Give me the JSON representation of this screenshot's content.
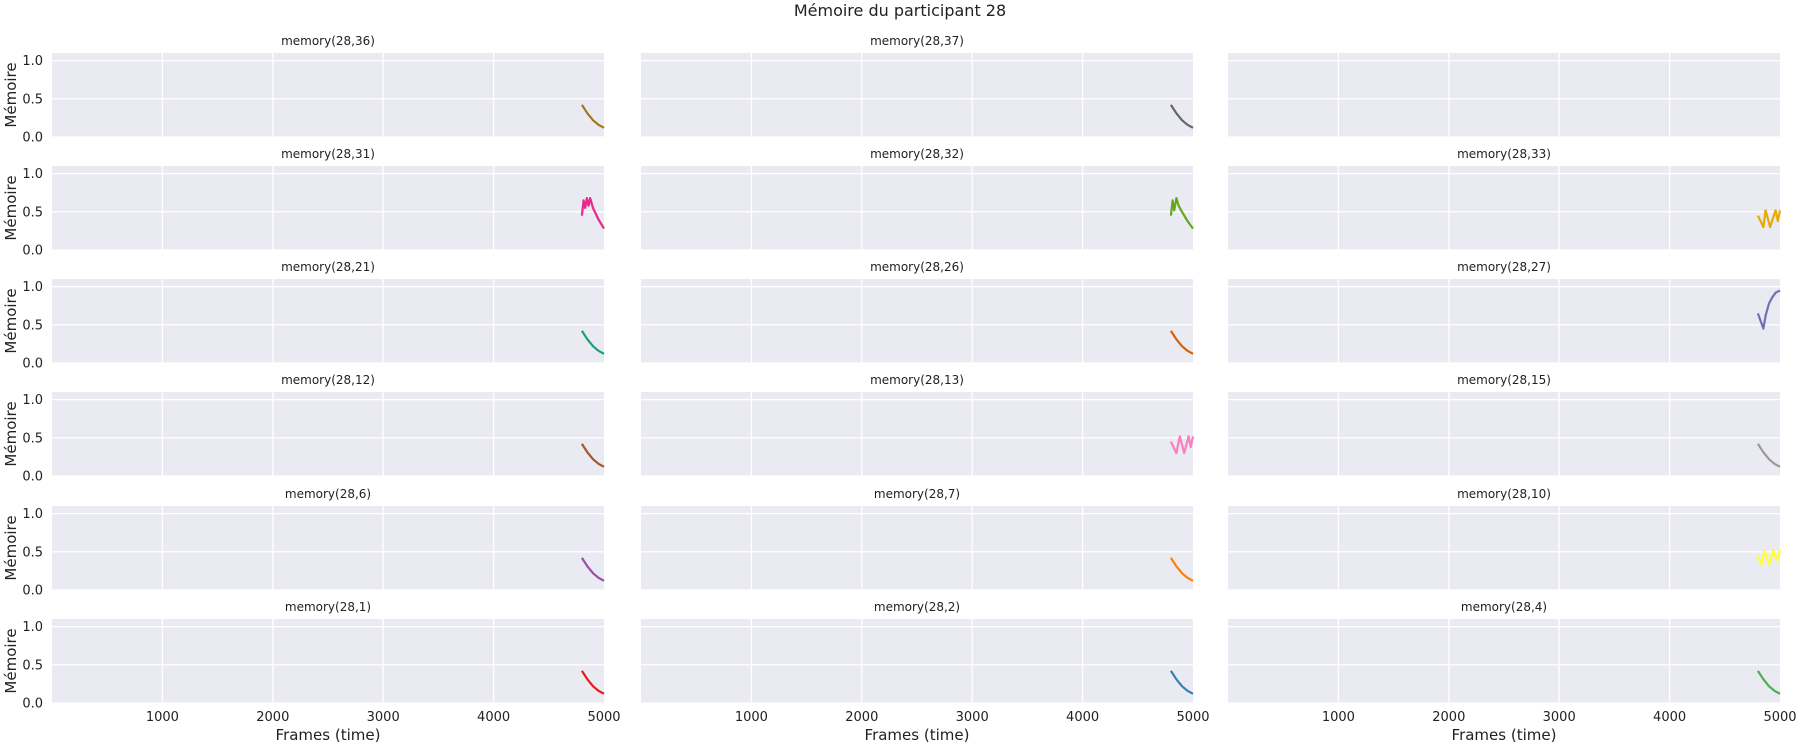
{
  "title": "Mémoire du participant 28",
  "xlabel": "Frames (time)",
  "ylabel": "Mémoire",
  "colors": {
    "panel_bg": "#eaeaf2",
    "grid": "#ffffff",
    "text": "#222222"
  },
  "chart_data": {
    "type": "line",
    "title": "Mémoire du participant 28",
    "layout": "6 rows x 3 columns of small multiples, shared axes",
    "xlabel": "Frames (time)",
    "ylabel": "Mémoire",
    "xlim": [
      0,
      5000
    ],
    "ylim": [
      0,
      1.1
    ],
    "xticks": [
      1000,
      2000,
      3000,
      4000,
      5000
    ],
    "xtick_labels": [
      "1000",
      "2000",
      "3000",
      "4000",
      "5000"
    ],
    "yticks": [
      0.0,
      0.5,
      1.0
    ],
    "ytick_labels": [
      "0.0",
      "0.5",
      "1.0"
    ],
    "grid": true,
    "panels": [
      {
        "title": "memory(28,36)",
        "color": "#a6761d",
        "x": [
          4800,
          4850,
          4900,
          4950,
          5000
        ],
        "y": [
          0.42,
          0.31,
          0.22,
          0.16,
          0.12
        ]
      },
      {
        "title": "memory(28,37)",
        "color": "#666666",
        "x": [
          4800,
          4850,
          4900,
          4950,
          5000
        ],
        "y": [
          0.42,
          0.31,
          0.22,
          0.16,
          0.12
        ]
      },
      {
        "title": "",
        "color": "#999999",
        "x": [],
        "y": []
      },
      {
        "title": "memory(28,31)",
        "color": "#e7298a",
        "x": [
          4800,
          4815,
          4830,
          4845,
          4860,
          4875,
          4900,
          4950,
          5000
        ],
        "y": [
          0.45,
          0.65,
          0.55,
          0.68,
          0.58,
          0.68,
          0.55,
          0.4,
          0.28
        ]
      },
      {
        "title": "memory(28,32)",
        "color": "#66a61e",
        "x": [
          4800,
          4815,
          4830,
          4850,
          4870,
          4900,
          4950,
          5000
        ],
        "y": [
          0.45,
          0.65,
          0.52,
          0.68,
          0.58,
          0.5,
          0.38,
          0.28
        ]
      },
      {
        "title": "memory(28,33)",
        "color": "#e6ab02",
        "x": [
          4800,
          4850,
          4870,
          4910,
          4960,
          4980,
          5000
        ],
        "y": [
          0.45,
          0.3,
          0.52,
          0.3,
          0.52,
          0.38,
          0.52
        ]
      },
      {
        "title": "memory(28,21)",
        "color": "#1b9e77",
        "x": [
          4800,
          4850,
          4900,
          4950,
          5000
        ],
        "y": [
          0.42,
          0.31,
          0.22,
          0.16,
          0.12
        ]
      },
      {
        "title": "memory(28,26)",
        "color": "#d95f02",
        "x": [
          4800,
          4850,
          4900,
          4950,
          5000
        ],
        "y": [
          0.42,
          0.31,
          0.22,
          0.16,
          0.12
        ]
      },
      {
        "title": "memory(28,27)",
        "color": "#7570b3",
        "x": [
          4800,
          4850,
          4870,
          4900,
          4930,
          4960,
          5000
        ],
        "y": [
          0.65,
          0.45,
          0.62,
          0.78,
          0.86,
          0.92,
          0.95
        ]
      },
      {
        "title": "memory(28,12)",
        "color": "#a65628",
        "x": [
          4800,
          4850,
          4900,
          4950,
          5000
        ],
        "y": [
          0.42,
          0.31,
          0.22,
          0.16,
          0.12
        ]
      },
      {
        "title": "memory(28,13)",
        "color": "#f781bf",
        "x": [
          4800,
          4850,
          4880,
          4920,
          4960,
          4980,
          5000
        ],
        "y": [
          0.45,
          0.3,
          0.52,
          0.3,
          0.52,
          0.38,
          0.52
        ]
      },
      {
        "title": "memory(28,15)",
        "color": "#999999",
        "x": [
          4800,
          4850,
          4900,
          4950,
          5000
        ],
        "y": [
          0.42,
          0.31,
          0.22,
          0.16,
          0.12
        ]
      },
      {
        "title": "memory(28,6)",
        "color": "#984ea3",
        "x": [
          4800,
          4850,
          4900,
          4950,
          5000
        ],
        "y": [
          0.42,
          0.31,
          0.22,
          0.16,
          0.12
        ]
      },
      {
        "title": "memory(28,7)",
        "color": "#ff7f00",
        "x": [
          4800,
          4850,
          4900,
          4950,
          5000
        ],
        "y": [
          0.42,
          0.31,
          0.22,
          0.16,
          0.12
        ]
      },
      {
        "title": "memory(28,10)",
        "color": "#ffff33",
        "x": [
          4800,
          4830,
          4860,
          4900,
          4940,
          4970,
          5000
        ],
        "y": [
          0.45,
          0.33,
          0.52,
          0.33,
          0.52,
          0.38,
          0.52
        ]
      },
      {
        "title": "memory(28,1)",
        "color": "#e41a1c",
        "x": [
          4800,
          4850,
          4900,
          4950,
          5000
        ],
        "y": [
          0.42,
          0.31,
          0.22,
          0.16,
          0.12
        ]
      },
      {
        "title": "memory(28,2)",
        "color": "#377eb8",
        "x": [
          4800,
          4850,
          4900,
          4950,
          5000
        ],
        "y": [
          0.42,
          0.31,
          0.22,
          0.16,
          0.12
        ]
      },
      {
        "title": "memory(28,4)",
        "color": "#4daf4a",
        "x": [
          4800,
          4850,
          4900,
          4950,
          5000
        ],
        "y": [
          0.42,
          0.31,
          0.22,
          0.16,
          0.12
        ]
      }
    ]
  }
}
